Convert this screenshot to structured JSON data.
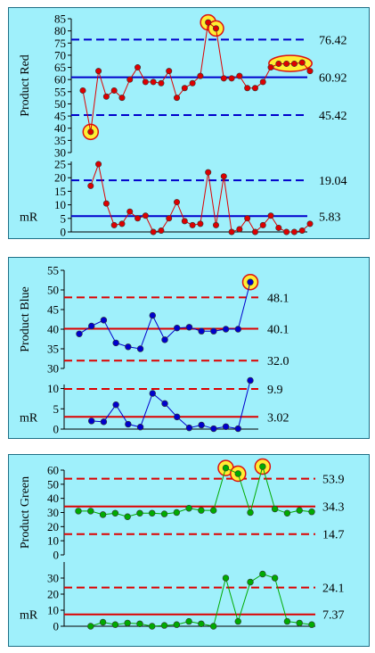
{
  "chart_data": [
    {
      "type": "line",
      "title": "",
      "ylabel": "Product Red",
      "ylim": [
        30,
        85
      ],
      "yticks": [
        "30",
        "35",
        "40",
        "45",
        "50",
        "55",
        "60",
        "65",
        "70",
        "75",
        "80",
        "85"
      ],
      "series": [
        {
          "values": [
            55.5,
            38.5,
            63.5,
            53,
            55.5,
            52.5,
            60,
            65,
            59,
            59,
            58.5,
            63.5,
            52.5,
            56.5,
            58.5,
            61.5,
            83.5,
            81,
            60.5,
            60.5,
            61.5,
            56.5,
            56.5,
            59,
            65,
            66.5,
            66.5,
            66.5,
            67,
            63.5
          ]
        }
      ],
      "limits": {
        "ucl": 76.42,
        "center": 60.92,
        "lcl": 45.42
      },
      "limit_labels": {
        "ucl": "76.42",
        "center": "60.92",
        "lcl": "45.42"
      },
      "highlights": [
        1,
        16,
        17
      ],
      "highlight_group": [
        25,
        28
      ],
      "color": "#dd0000",
      "limit_color": "#0000cc",
      "mr": {
        "ylabel": "mR",
        "ylim": [
          0,
          26
        ],
        "yticks": [
          "0",
          "5",
          "10",
          "15",
          "20",
          "25"
        ],
        "values": [
          17,
          25,
          10.5,
          2.5,
          3,
          7.5,
          5,
          6,
          0,
          0.5,
          5,
          11,
          4,
          2.5,
          3,
          22,
          2.5,
          20.5,
          0,
          1,
          5,
          0,
          2.5,
          6,
          1.5,
          0,
          0,
          0.5,
          3
        ],
        "ucl": 19.04,
        "center": 5.83,
        "ucl_label": "19.04",
        "center_label": "5.83"
      }
    },
    {
      "type": "line",
      "title": "",
      "ylabel": "Product Blue",
      "ylim": [
        30,
        55
      ],
      "yticks": [
        "30",
        "35",
        "40",
        "45",
        "50",
        "55"
      ],
      "series": [
        {
          "values": [
            38.8,
            40.8,
            42.3,
            36.5,
            35.5,
            35,
            43.5,
            37.3,
            40.3,
            40.5,
            39.5,
            39.5,
            40,
            40,
            52
          ]
        }
      ],
      "limits": {
        "ucl": 48.1,
        "center": 40.1,
        "lcl": 32.0
      },
      "limit_labels": {
        "ucl": "48.1",
        "center": "40.1",
        "lcl": "32.0"
      },
      "highlights": [
        14
      ],
      "color": "#0000cc",
      "limit_color": "#dd0000",
      "mr": {
        "ylabel": "mR",
        "ylim": [
          0,
          11
        ],
        "yticks": [
          "0",
          "5",
          "10"
        ],
        "values": [
          2,
          1.8,
          6,
          1.2,
          0.5,
          8.8,
          6.3,
          3,
          0.3,
          1,
          0.1,
          0.6,
          0.1,
          12
        ],
        "ucl": 9.9,
        "center": 3.02,
        "ucl_label": "9.9",
        "center_label": "3.02"
      }
    },
    {
      "type": "line",
      "title": "",
      "ylabel": "Product Green",
      "ylim": [
        0,
        60
      ],
      "yticks": [
        "0",
        "10",
        "20",
        "30",
        "40",
        "50",
        "60"
      ],
      "series": [
        {
          "values": [
            31,
            31,
            28.5,
            29.5,
            27,
            29.5,
            29.5,
            29,
            30,
            33,
            31.5,
            31.5,
            61.5,
            57.5,
            30,
            62.5,
            32.5,
            29.5,
            31.5,
            30.5
          ]
        }
      ],
      "limits": {
        "ucl": 53.9,
        "center": 34.3,
        "lcl": 14.7
      },
      "limit_labels": {
        "ucl": "53.9",
        "center": "34.3",
        "lcl": "14.7"
      },
      "highlights": [
        12,
        13,
        15
      ],
      "color": "#00aa00",
      "limit_color": "#dd0000",
      "mr": {
        "ylabel": "mR",
        "ylim": [
          0,
          40
        ],
        "yticks": [
          "0",
          "10",
          "20",
          "30"
        ],
        "values": [
          0,
          2.5,
          1,
          2,
          1.5,
          0,
          0.5,
          1,
          3,
          1.5,
          0,
          30,
          3,
          27.5,
          32.5,
          30,
          3,
          2,
          1
        ],
        "ucl": 24.1,
        "center": 7.37,
        "ucl_label": "24.1",
        "center_label": "7.37"
      }
    }
  ]
}
